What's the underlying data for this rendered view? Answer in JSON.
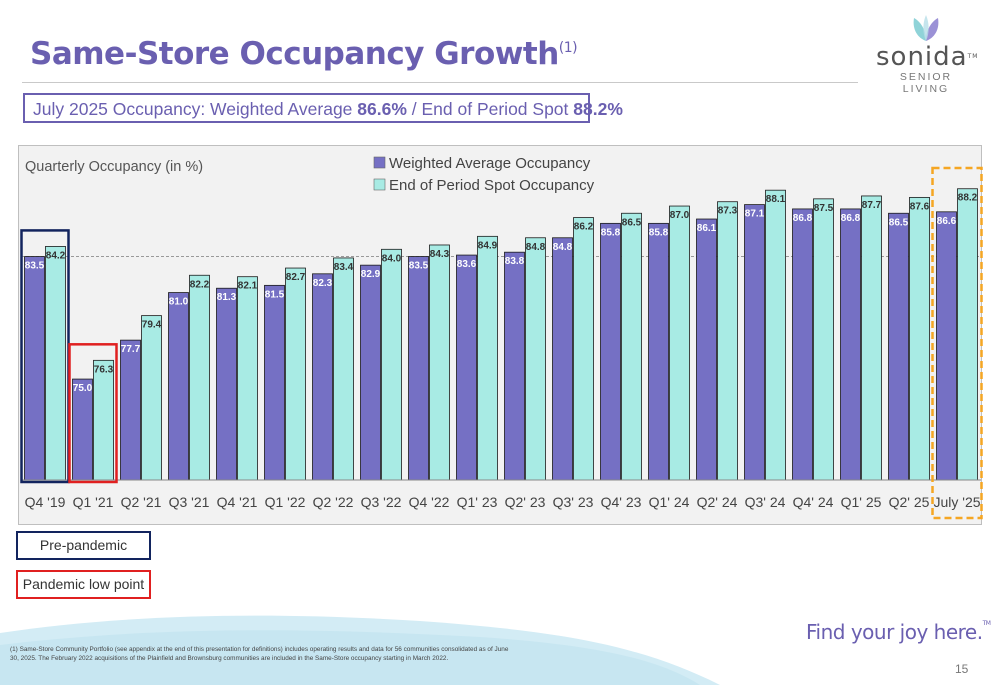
{
  "header": {
    "title": "Same-Store Occupancy Growth",
    "title_note": "(1)",
    "summary_prefix": "July 2025 Occupancy: Weighted Average ",
    "summary_avg": "86.6%",
    "summary_mid": " / End of Period Spot ",
    "summary_spot": "88.2%"
  },
  "logo": {
    "word": "sonida",
    "tm": "TM",
    "sub": "SENIOR LIVING",
    "icon": "leaf-logo-icon"
  },
  "legend": {
    "pre_pandemic": "Pre-pandemic",
    "pandemic_low": "Pandemic low point"
  },
  "footer": {
    "footnote": "(1) Same-Store Community Portfolio (see appendix at the end of this presentation for definitions) includes operating results and data for 56 communities consolidated as of June 30, 2025. The February 2022 acquisitions of the Plainfield and Brownsburg communities are included in the Same-Store occupancy starting in March 2022.",
    "tagline": "Find your joy here.",
    "tagline_tm": "TM",
    "page": "15"
  },
  "colors": {
    "brand": "#6a5fb0",
    "weighted_series": "#7570c4",
    "spot_series": "#a8ebe4",
    "pre_pandemic_box": "#12245e",
    "pandemic_low_box": "#e02020",
    "latest_highlight": "#f5a623",
    "chart_background": "#f2f2f2"
  },
  "chart_data": {
    "type": "bar",
    "title": "Quarterly Occupancy (in %)",
    "categories": [
      "Q4 '19",
      "Q1 '21",
      "Q2 '21",
      "Q3 '21",
      "Q4 '21",
      "Q1 '22",
      "Q2 '22",
      "Q3 '22",
      "Q4 '22",
      "Q1' 23",
      "Q2' 23",
      "Q3' 23",
      "Q4' 23",
      "Q1' 24",
      "Q2' 24",
      "Q3' 24",
      "Q4' 24",
      "Q1' 25",
      "Q2' 25",
      "July '25"
    ],
    "series": [
      {
        "name": "Weighted Average Occupancy",
        "values": [
          83.5,
          75.0,
          77.7,
          81.0,
          81.3,
          81.5,
          82.3,
          82.9,
          83.5,
          83.6,
          83.8,
          84.8,
          85.8,
          85.8,
          86.1,
          87.1,
          86.8,
          86.8,
          86.5,
          86.6
        ]
      },
      {
        "name": "End of Period Spot Occupancy",
        "values": [
          84.2,
          76.3,
          79.4,
          82.2,
          82.1,
          82.7,
          83.4,
          84.0,
          84.3,
          84.9,
          84.8,
          86.2,
          86.5,
          87.0,
          87.3,
          88.1,
          87.5,
          87.7,
          87.6,
          88.2
        ]
      }
    ],
    "reference_line": 83.5,
    "ylim": [
      68,
      89.5
    ],
    "grid": false,
    "legend_placement": "top-center",
    "highlights": [
      {
        "category": "Q4 '19",
        "label": "Pre-pandemic"
      },
      {
        "category": "Q1 '21",
        "label": "Pandemic low point"
      },
      {
        "category": "July '25",
        "label": "latest"
      }
    ]
  }
}
